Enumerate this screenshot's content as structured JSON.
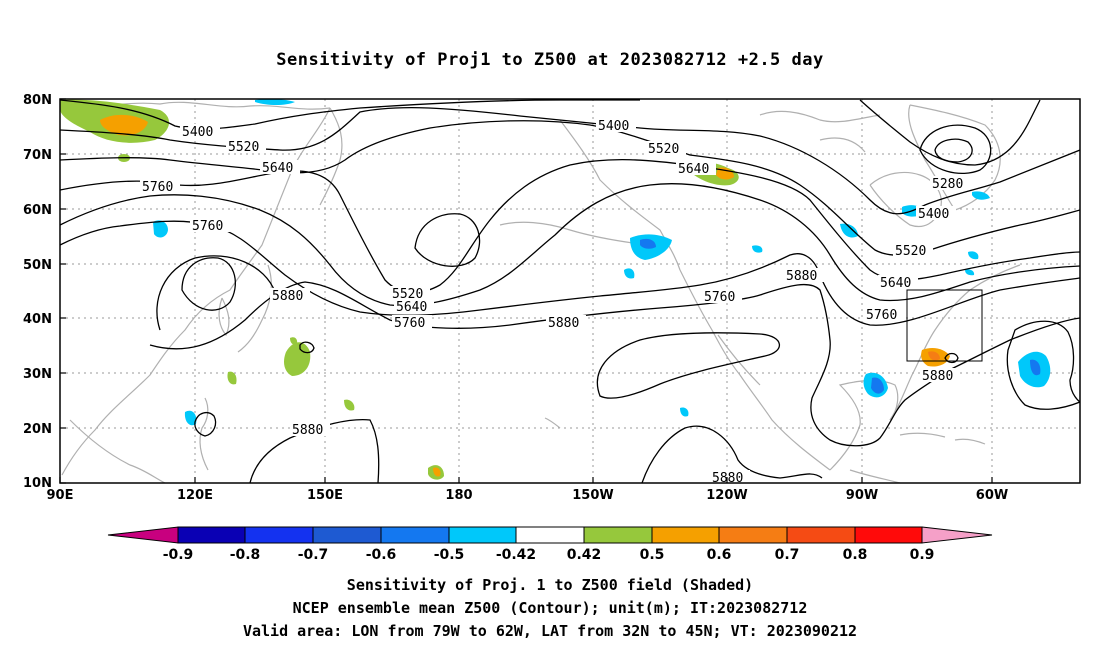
{
  "title": "Sensitivity of Proj1 to Z500 at 2023082712 +2.5 day",
  "lat_labels": [
    "80N",
    "70N",
    "60N",
    "50N",
    "40N",
    "30N",
    "20N",
    "10N"
  ],
  "lon_labels": [
    "90E",
    "120E",
    "150E",
    "180",
    "150W",
    "120W",
    "90W",
    "60W"
  ],
  "contour_labels": {
    "c5400_a": "5400",
    "c5400_b": "5400",
    "c5400_c": "5400",
    "c5520_a": "5520",
    "c5520_b": "5520",
    "c5520_c": "5520",
    "c5640_a": "5640",
    "c5640_b": "5640",
    "c5640_c": "5640",
    "c5760_a": "5760",
    "c5760_b": "5760",
    "c5760_c": "5760",
    "c5760_d": "5760",
    "c5760_e": "5760",
    "c5880_a": "5880",
    "c5880_b": "5880",
    "c5880_c": "5880",
    "c5880_d": "5880",
    "c5880_e": "5880",
    "c5880_f": "5880",
    "c5280": "5280"
  },
  "colorbar": {
    "labels": [
      "-0.9",
      "-0.8",
      "-0.7",
      "-0.6",
      "-0.5",
      "-0.42",
      "0.42",
      "0.5",
      "0.6",
      "0.7",
      "0.8",
      "0.9"
    ],
    "colors": {
      "lt_m09": "#c8007f",
      "m09_m08": "#0a00b4",
      "m08_m07": "#1432f0",
      "m07_m06": "#1e5ad2",
      "m06_m05": "#1478f0",
      "m05_m042": "#00c8fa",
      "m042_042": "#ffffff",
      "p042_p05": "#96c83c",
      "p05_p06": "#f5a000",
      "p06_p07": "#f57d14",
      "p07_p08": "#f54b14",
      "p08_p09": "#ff0a0a",
      "gt_p09": "#f5a0c8"
    }
  },
  "caption": [
    "Sensitivity of Proj. 1 to Z500 field (Shaded)",
    "NCEP ensemble mean Z500 (Contour); unit(m); IT:2023082712",
    "Valid area: LON from 79W to 62W, LAT from 32N to 45N; VT: 2023090212"
  ]
}
